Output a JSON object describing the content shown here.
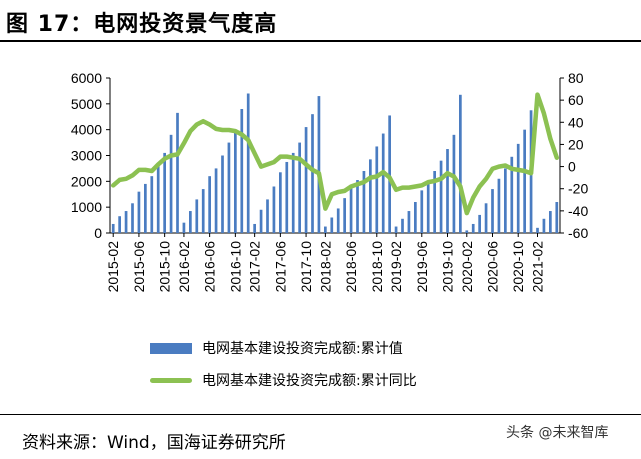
{
  "figure": {
    "title": "图 17：电网投资景气度高",
    "source": "资料来源：Wind，国海证券研究所",
    "watermark": "头条 @未来智库"
  },
  "chart_data": {
    "type": "bar+line",
    "title": "电网投资景气度高",
    "legend_position": "bottom",
    "categories": [
      "2015-02",
      "2015-03",
      "2015-04",
      "2015-05",
      "2015-06",
      "2015-07",
      "2015-08",
      "2015-09",
      "2015-10",
      "2015-11",
      "2015-12",
      "2016-02",
      "2016-03",
      "2016-04",
      "2016-05",
      "2016-06",
      "2016-07",
      "2016-08",
      "2016-09",
      "2016-10",
      "2016-11",
      "2016-12",
      "2017-02",
      "2017-03",
      "2017-04",
      "2017-05",
      "2017-06",
      "2017-07",
      "2017-08",
      "2017-09",
      "2017-10",
      "2017-11",
      "2017-12",
      "2018-02",
      "2018-03",
      "2018-04",
      "2018-05",
      "2018-06",
      "2018-07",
      "2018-08",
      "2018-09",
      "2018-10",
      "2018-11",
      "2018-12",
      "2019-02",
      "2019-03",
      "2019-04",
      "2019-05",
      "2019-06",
      "2019-07",
      "2019-08",
      "2019-09",
      "2019-10",
      "2019-11",
      "2019-12",
      "2020-02",
      "2020-03",
      "2020-04",
      "2020-05",
      "2020-06",
      "2020-07",
      "2020-08",
      "2020-09",
      "2020-10",
      "2020-11",
      "2020-12",
      "2021-02",
      "2021-03",
      "2021-04",
      "2021-05"
    ],
    "x_tick_labels": [
      "2015-02",
      "2015-06",
      "2015-10",
      "2016-02",
      "2016-06",
      "2016-10",
      "2017-02",
      "2017-06",
      "2017-10",
      "2018-02",
      "2018-06",
      "2018-10",
      "2019-02",
      "2019-06",
      "2019-10",
      "2020-02",
      "2020-06",
      "2020-10",
      "2021-02"
    ],
    "series": [
      {
        "name": "电网基本建设投资完成额:累计值",
        "type": "bar",
        "axis": "left",
        "color": "#4A7CC1",
        "values": [
          350,
          650,
          850,
          1150,
          1600,
          1900,
          2200,
          2600,
          3100,
          3800,
          4650,
          400,
          850,
          1300,
          1700,
          2200,
          2500,
          3000,
          3500,
          4000,
          4800,
          5400,
          350,
          900,
          1300,
          1800,
          2350,
          2750,
          3100,
          3500,
          4100,
          4600,
          5300,
          250,
          600,
          950,
          1350,
          1800,
          2050,
          2400,
          2850,
          3350,
          3850,
          4550,
          250,
          550,
          850,
          1200,
          1650,
          2000,
          2400,
          2800,
          3250,
          3800,
          5350,
          100,
          350,
          700,
          1150,
          1700,
          2100,
          2500,
          2950,
          3450,
          4000,
          4750,
          200,
          550,
          850,
          1200
        ]
      },
      {
        "name": "电网基本建设投资完成额:累计同比",
        "type": "line",
        "axis": "right",
        "color": "#8CC152",
        "values": [
          -17,
          -12,
          -11,
          -8,
          -3,
          -3,
          -4,
          2,
          7,
          10,
          11,
          21,
          32,
          38,
          41,
          38,
          34,
          33,
          33,
          32,
          29,
          24,
          12,
          0,
          2,
          4,
          9,
          9,
          8,
          7,
          2,
          -3,
          -6,
          -38,
          -25,
          -23,
          -22,
          -18,
          -16,
          -14,
          -10,
          -9,
          -5,
          -10,
          -21,
          -19,
          -19,
          -18,
          -17,
          -14,
          -13,
          -11,
          -6,
          -9,
          -18,
          -42,
          -28,
          -18,
          -11,
          -2,
          0,
          1,
          -2,
          -3,
          -4,
          -6,
          65,
          48,
          25,
          8
        ]
      }
    ],
    "y_left": {
      "min": 0,
      "max": 6000,
      "ticks": [
        0,
        1000,
        2000,
        3000,
        4000,
        5000,
        6000
      ]
    },
    "y_right": {
      "min": -60,
      "max": 80,
      "ticks": [
        -60,
        -40,
        -20,
        0,
        20,
        40,
        60,
        80
      ]
    }
  }
}
